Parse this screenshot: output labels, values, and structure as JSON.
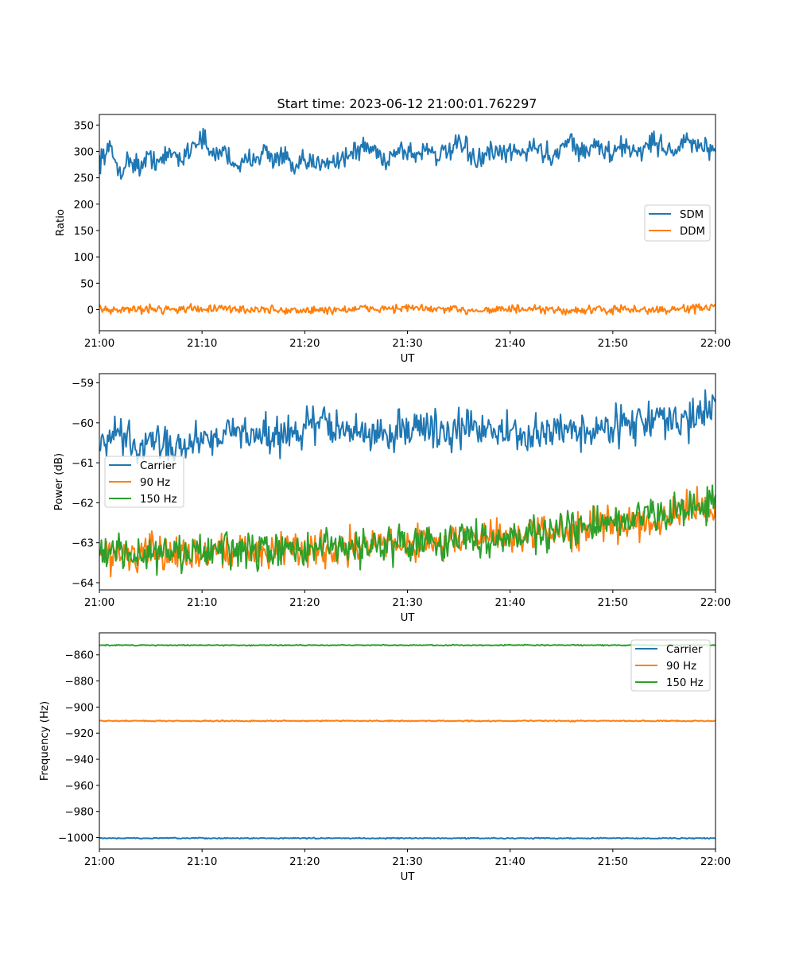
{
  "title": "Start time: 2023-06-12 21:00:01.762297",
  "colors": {
    "blue": "#1f77b4",
    "orange": "#ff7f0e",
    "green": "#2ca02c"
  },
  "chart_data": [
    {
      "type": "line",
      "xlabel": "UT",
      "ylabel": "Ratio",
      "xlim": [
        "21:00",
        "22:00"
      ],
      "xticks": [
        "21:00",
        "21:10",
        "21:20",
        "21:30",
        "21:40",
        "21:50",
        "22:00"
      ],
      "ylim": [
        -40,
        370
      ],
      "yticks": [
        0,
        50,
        100,
        150,
        200,
        250,
        300,
        350
      ],
      "legend": {
        "placement": "center-right"
      },
      "series": [
        {
          "name": "SDM",
          "color": "#1f77b4",
          "mean": 290,
          "noise": 18,
          "points": [
            [
              "21:00",
              285
            ],
            [
              "21:01",
              305
            ],
            [
              "21:02",
              262
            ],
            [
              "21:03",
              285
            ],
            [
              "21:04",
              270
            ],
            [
              "21:05",
              290
            ],
            [
              "21:06",
              280
            ],
            [
              "21:07",
              298
            ],
            [
              "21:08",
              285
            ],
            [
              "21:09",
              312
            ],
            [
              "21:10",
              328
            ],
            [
              "21:11",
              288
            ],
            [
              "21:12",
              305
            ],
            [
              "21:13",
              280
            ],
            [
              "21:14",
              272
            ],
            [
              "21:15",
              292
            ],
            [
              "21:16",
              300
            ],
            [
              "21:17",
              285
            ],
            [
              "21:18",
              292
            ],
            [
              "21:19",
              262
            ],
            [
              "21:20",
              280
            ],
            [
              "21:21",
              272
            ],
            [
              "21:22",
              288
            ],
            [
              "21:23",
              280
            ],
            [
              "21:24",
              292
            ],
            [
              "21:25",
              300
            ],
            [
              "21:26",
              310
            ],
            [
              "21:27",
              298
            ],
            [
              "21:28",
              282
            ],
            [
              "21:29",
              305
            ],
            [
              "21:30",
              300
            ],
            [
              "21:31",
              292
            ],
            [
              "21:32",
              310
            ],
            [
              "21:33",
              290
            ],
            [
              "21:34",
              298
            ],
            [
              "21:35",
              312
            ],
            [
              "21:36",
              298
            ],
            [
              "21:37",
              280
            ],
            [
              "21:38",
              300
            ],
            [
              "21:39",
              290
            ],
            [
              "21:40",
              300
            ],
            [
              "21:41",
              295
            ],
            [
              "21:42",
              310
            ],
            [
              "21:43",
              302
            ],
            [
              "21:44",
              288
            ],
            [
              "21:45",
              312
            ],
            [
              "21:46",
              322
            ],
            [
              "21:47",
              295
            ],
            [
              "21:48",
              310
            ],
            [
              "21:49",
              305
            ],
            [
              "21:50",
              292
            ],
            [
              "21:51",
              312
            ],
            [
              "21:52",
              300
            ],
            [
              "21:53",
              305
            ],
            [
              "21:54",
              320
            ],
            [
              "21:55",
              308
            ],
            [
              "21:56",
              300
            ],
            [
              "21:57",
              318
            ],
            [
              "21:58",
              312
            ],
            [
              "21:59",
              308
            ],
            [
              "22:00",
              290
            ]
          ]
        },
        {
          "name": "DDM",
          "color": "#ff7f0e",
          "mean": 0,
          "noise": 7,
          "points": [
            [
              "21:00",
              0
            ],
            [
              "21:05",
              1
            ],
            [
              "21:10",
              2
            ],
            [
              "21:15",
              0
            ],
            [
              "21:20",
              -2
            ],
            [
              "21:25",
              1
            ],
            [
              "21:30",
              3
            ],
            [
              "21:35",
              -1
            ],
            [
              "21:40",
              1
            ],
            [
              "21:45",
              -2
            ],
            [
              "21:50",
              0
            ],
            [
              "21:55",
              -1
            ],
            [
              "22:00",
              5
            ]
          ]
        }
      ]
    },
    {
      "type": "line",
      "xlabel": "UT",
      "ylabel": "Power (dB)",
      "xlim": [
        "21:00",
        "22:00"
      ],
      "xticks": [
        "21:00",
        "21:10",
        "21:20",
        "21:30",
        "21:40",
        "21:50",
        "22:00"
      ],
      "ylim": [
        -64.18,
        -58.77
      ],
      "yticks": [
        -64,
        -63,
        -62,
        -61,
        -60,
        -59
      ],
      "legend": {
        "placement": "center-left"
      },
      "series": [
        {
          "name": "Carrier",
          "color": "#1f77b4",
          "mean": -60.2,
          "noise": 0.4,
          "points": [
            [
              "21:00",
              -60.6
            ],
            [
              "21:02",
              -60.3
            ],
            [
              "21:04",
              -60.7
            ],
            [
              "21:06",
              -60.4
            ],
            [
              "21:08",
              -60.6
            ],
            [
              "21:10",
              -60.4
            ],
            [
              "21:12",
              -60.2
            ],
            [
              "21:14",
              -60.3
            ],
            [
              "21:16",
              -60.2
            ],
            [
              "21:18",
              -60.4
            ],
            [
              "21:20",
              -60.1
            ],
            [
              "21:22",
              -60.0
            ],
            [
              "21:24",
              -60.2
            ],
            [
              "21:26",
              -60.3
            ],
            [
              "21:28",
              -60.3
            ],
            [
              "21:30",
              -60.1
            ],
            [
              "21:32",
              -60.1
            ],
            [
              "21:34",
              -60.3
            ],
            [
              "21:36",
              -60.1
            ],
            [
              "21:38",
              -60.1
            ],
            [
              "21:40",
              -60.3
            ],
            [
              "21:42",
              -60.4
            ],
            [
              "21:44",
              -60.2
            ],
            [
              "21:46",
              -60.1
            ],
            [
              "21:48",
              -60.3
            ],
            [
              "21:50",
              -60.0
            ],
            [
              "21:52",
              -60.0
            ],
            [
              "21:54",
              -59.9
            ],
            [
              "21:56",
              -60.0
            ],
            [
              "21:58",
              -59.9
            ],
            [
              "22:00",
              -59.4
            ]
          ]
        },
        {
          "name": "90 Hz",
          "color": "#ff7f0e",
          "mean": -63.0,
          "noise": 0.38,
          "points": [
            [
              "21:00",
              -63.3
            ],
            [
              "21:06",
              -63.3
            ],
            [
              "21:12",
              -63.2
            ],
            [
              "21:18",
              -63.2
            ],
            [
              "21:24",
              -63.1
            ],
            [
              "21:30",
              -63.0
            ],
            [
              "21:36",
              -62.9
            ],
            [
              "21:42",
              -62.8
            ],
            [
              "21:48",
              -62.6
            ],
            [
              "21:54",
              -62.4
            ],
            [
              "22:00",
              -62.1
            ]
          ]
        },
        {
          "name": "150 Hz",
          "color": "#2ca02c",
          "mean": -63.0,
          "noise": 0.38,
          "points": [
            [
              "21:00",
              -63.2
            ],
            [
              "21:06",
              -63.3
            ],
            [
              "21:12",
              -63.2
            ],
            [
              "21:18",
              -63.2
            ],
            [
              "21:24",
              -63.1
            ],
            [
              "21:30",
              -63.0
            ],
            [
              "21:36",
              -62.9
            ],
            [
              "21:42",
              -62.8
            ],
            [
              "21:48",
              -62.6
            ],
            [
              "21:54",
              -62.3
            ],
            [
              "22:00",
              -62.0
            ]
          ]
        }
      ]
    },
    {
      "type": "line",
      "xlabel": "UT",
      "ylabel": "Frequency (Hz)",
      "xlim": [
        "21:00",
        "22:00"
      ],
      "xticks": [
        "21:00",
        "21:10",
        "21:20",
        "21:30",
        "21:40",
        "21:50",
        "22:00"
      ],
      "ylim": [
        -1008.8,
        -843.1
      ],
      "yticks": [
        -1000,
        -980,
        -960,
        -940,
        -920,
        -900,
        -880,
        -860
      ],
      "legend": {
        "placement": "upper-right"
      },
      "series": [
        {
          "name": "Carrier",
          "color": "#1f77b4",
          "mean": -1000.5,
          "noise": 0.35,
          "points": [
            [
              "21:00",
              -1000.5
            ],
            [
              "22:00",
              -1000.5
            ]
          ]
        },
        {
          "name": "90 Hz",
          "color": "#ff7f0e",
          "mean": -910.6,
          "noise": 0.4,
          "points": [
            [
              "21:00",
              -910.6
            ],
            [
              "22:00",
              -910.6
            ]
          ]
        },
        {
          "name": "150 Hz",
          "color": "#2ca02c",
          "mean": -852.6,
          "noise": 0.35,
          "points": [
            [
              "21:00",
              -852.6
            ],
            [
              "22:00",
              -852.6
            ]
          ]
        }
      ]
    }
  ]
}
